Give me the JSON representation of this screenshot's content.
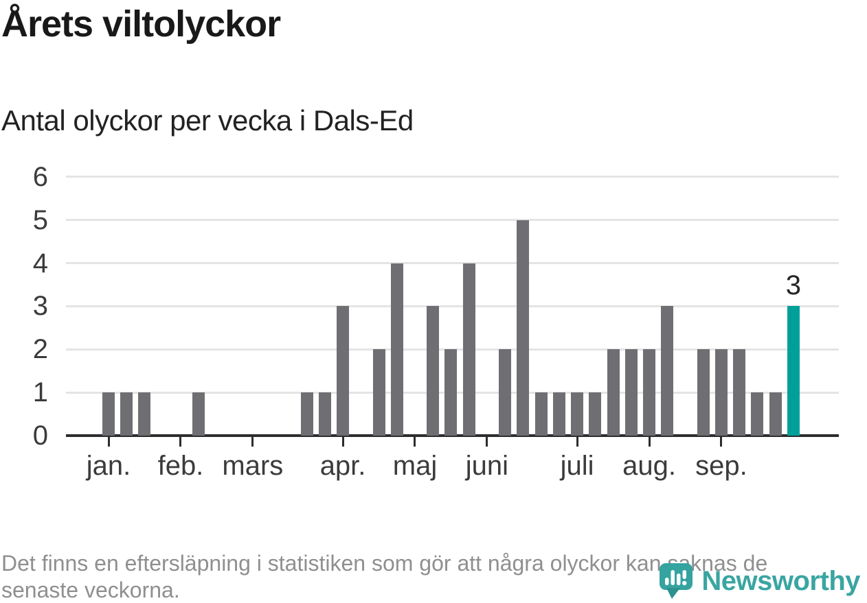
{
  "page": {
    "title": "Årets viltolyckor",
    "subtitle": "Antal olyckor per vecka i Dals-Ed",
    "footnote_line1": "Det finns en eftersläpning i statistiken som gör att några olyckor kan saknas de",
    "footnote_line2": "senaste veckorna.",
    "logo_text": "Newsworthy"
  },
  "colors": {
    "bar": "#6f6f73",
    "highlight": "#00a09a",
    "axis": "#2d2d2d",
    "grid": "#e4e4e4",
    "axis_text": "#3b3b3b",
    "title_text": "#191919",
    "footnote_text": "#8f8f8f",
    "logo": "#3aa5a1"
  },
  "chart_data": {
    "type": "bar",
    "title": "Årets viltolyckor",
    "subtitle": "Antal olyckor per vecka i Dals-Ed",
    "x_unit": "week",
    "categories_note": "weekly bars, week 1 of January through late September",
    "values": [
      1,
      1,
      1,
      0,
      0,
      1,
      0,
      0,
      0,
      0,
      0,
      1,
      1,
      3,
      0,
      2,
      4,
      0,
      3,
      2,
      4,
      0,
      2,
      5,
      1,
      1,
      1,
      1,
      2,
      2,
      2,
      3,
      0,
      2,
      2,
      2,
      1,
      1,
      3
    ],
    "highlight_index": 38,
    "highlight_value_label": "3",
    "ylim": [
      0,
      6
    ],
    "yticks": [
      "0",
      "1",
      "2",
      "3",
      "4",
      "5",
      "6"
    ],
    "grid": "horizontal",
    "legend": "none",
    "months": [
      {
        "label": "jan.",
        "slot": 0
      },
      {
        "label": "feb.",
        "slot": 4
      },
      {
        "label": "mars",
        "slot": 8
      },
      {
        "label": "apr.",
        "slot": 13
      },
      {
        "label": "maj",
        "slot": 17
      },
      {
        "label": "juni",
        "slot": 21
      },
      {
        "label": "juli",
        "slot": 26
      },
      {
        "label": "aug.",
        "slot": 30
      },
      {
        "label": "sep.",
        "slot": 34
      }
    ]
  }
}
